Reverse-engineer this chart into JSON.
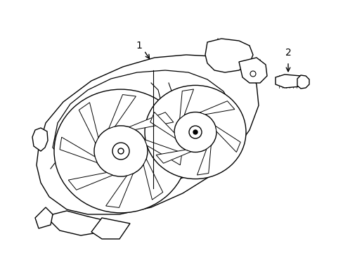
{
  "background_color": "#ffffff",
  "line_color": "#000000",
  "line_width": 1.0,
  "fig_width": 4.89,
  "fig_height": 3.6,
  "dpi": 100,
  "label1_text": "1",
  "label2_text": "2"
}
